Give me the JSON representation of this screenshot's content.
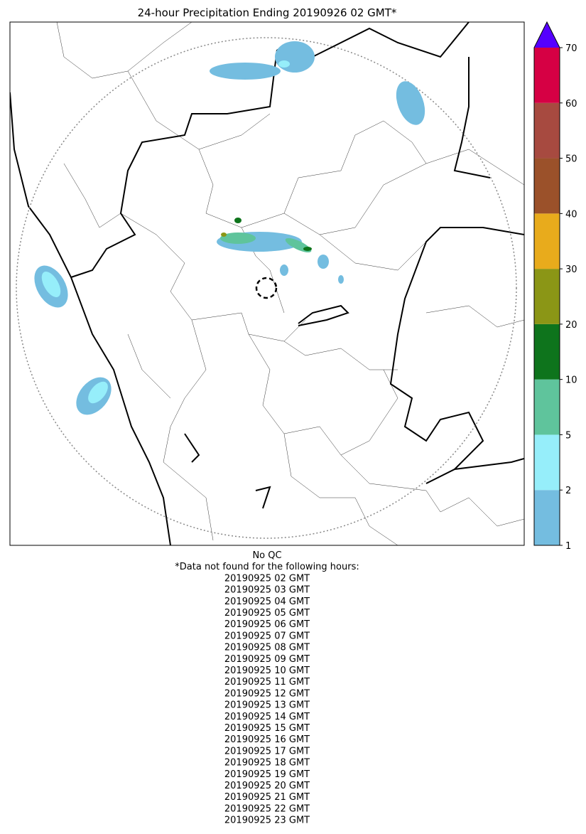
{
  "map": {
    "title": "24-hour Precipitation Ending 20190926 02 GMT*",
    "colorbar": {
      "ticks": [
        1,
        2,
        5,
        10,
        20,
        30,
        40,
        50,
        60,
        70
      ],
      "colors": [
        "#74bde0",
        "#96eefa",
        "#5fc49c",
        "#0e741c",
        "#8b9616",
        "#e8ab1c",
        "#9b512a",
        "#a74a40",
        "#d60044"
      ],
      "extend_color": "#5500ff"
    },
    "notes": {
      "qc": "No QC",
      "heading": "*Data not found for the following hours:",
      "hours": [
        "20190925 02 GMT",
        "20190925 03 GMT",
        "20190925 04 GMT",
        "20190925 05 GMT",
        "20190925 06 GMT",
        "20190925 07 GMT",
        "20190925 08 GMT",
        "20190925 09 GMT",
        "20190925 10 GMT",
        "20190925 11 GMT",
        "20190925 12 GMT",
        "20190925 13 GMT",
        "20190925 14 GMT",
        "20190925 15 GMT",
        "20190925 16 GMT",
        "20190925 17 GMT",
        "20190925 18 GMT",
        "20190925 19 GMT",
        "20190925 20 GMT",
        "20190925 21 GMT",
        "20190925 22 GMT",
        "20190925 23 GMT"
      ]
    }
  }
}
